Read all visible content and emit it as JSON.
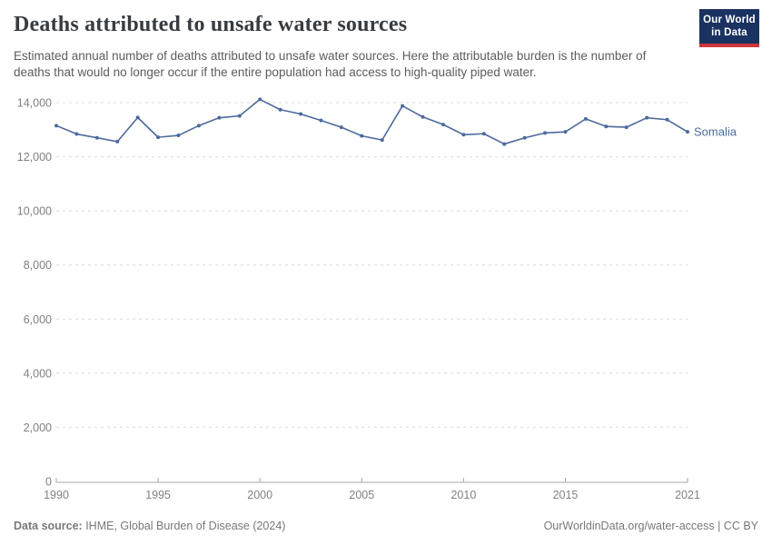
{
  "header": {
    "title": "Deaths attributed to unsafe water sources",
    "subtitle": "Estimated annual number of deaths attributed to unsafe water sources. Here the attributable burden is the number of deaths that would no longer occur if the entire population had access to high-quality piped water.",
    "logo": {
      "line1": "Our World",
      "line2": "in Data"
    }
  },
  "chart_data": {
    "type": "line",
    "title": "Deaths attributed to unsafe water sources",
    "xlabel": "",
    "ylabel": "",
    "xlim": [
      1990,
      2021
    ],
    "ylim": [
      0,
      14000
    ],
    "grid": "horizontal-dashed",
    "legend_position": "end-of-line",
    "xticks": [
      1990,
      1995,
      2000,
      2005,
      2010,
      2015,
      2021
    ],
    "yticks": [
      0,
      2000,
      4000,
      6000,
      8000,
      10000,
      12000,
      14000
    ],
    "series": [
      {
        "name": "Somalia",
        "color": "#4C6A9C",
        "x": [
          1990,
          1991,
          1992,
          1993,
          1994,
          1995,
          1996,
          1997,
          1998,
          1999,
          2000,
          2001,
          2002,
          2003,
          2004,
          2005,
          2006,
          2007,
          2008,
          2009,
          2010,
          2011,
          2012,
          2013,
          2014,
          2015,
          2016,
          2017,
          2018,
          2019,
          2020,
          2021
        ],
        "values": [
          13150,
          12840,
          12700,
          12560,
          13450,
          12720,
          12790,
          13150,
          13440,
          13510,
          14120,
          13740,
          13580,
          13340,
          13090,
          12770,
          12620,
          13880,
          13470,
          13190,
          12815,
          12850,
          12470,
          12700,
          12880,
          12920,
          13400,
          13120,
          13090,
          13440,
          13370,
          12920
        ]
      }
    ]
  },
  "footer": {
    "source_label": "Data source:",
    "source_value": " IHME, Global Burden of Disease (2024)",
    "url": "OurWorldinData.org/water-access",
    "separator": " | ",
    "license": "CC BY"
  },
  "colors": {
    "line": "#4C6A9C",
    "grid": "#dcdcdc",
    "axis": "#a8a8a8",
    "tick_text": "#808080",
    "logo_navy": "#1a3260",
    "logo_red": "#d13438"
  }
}
